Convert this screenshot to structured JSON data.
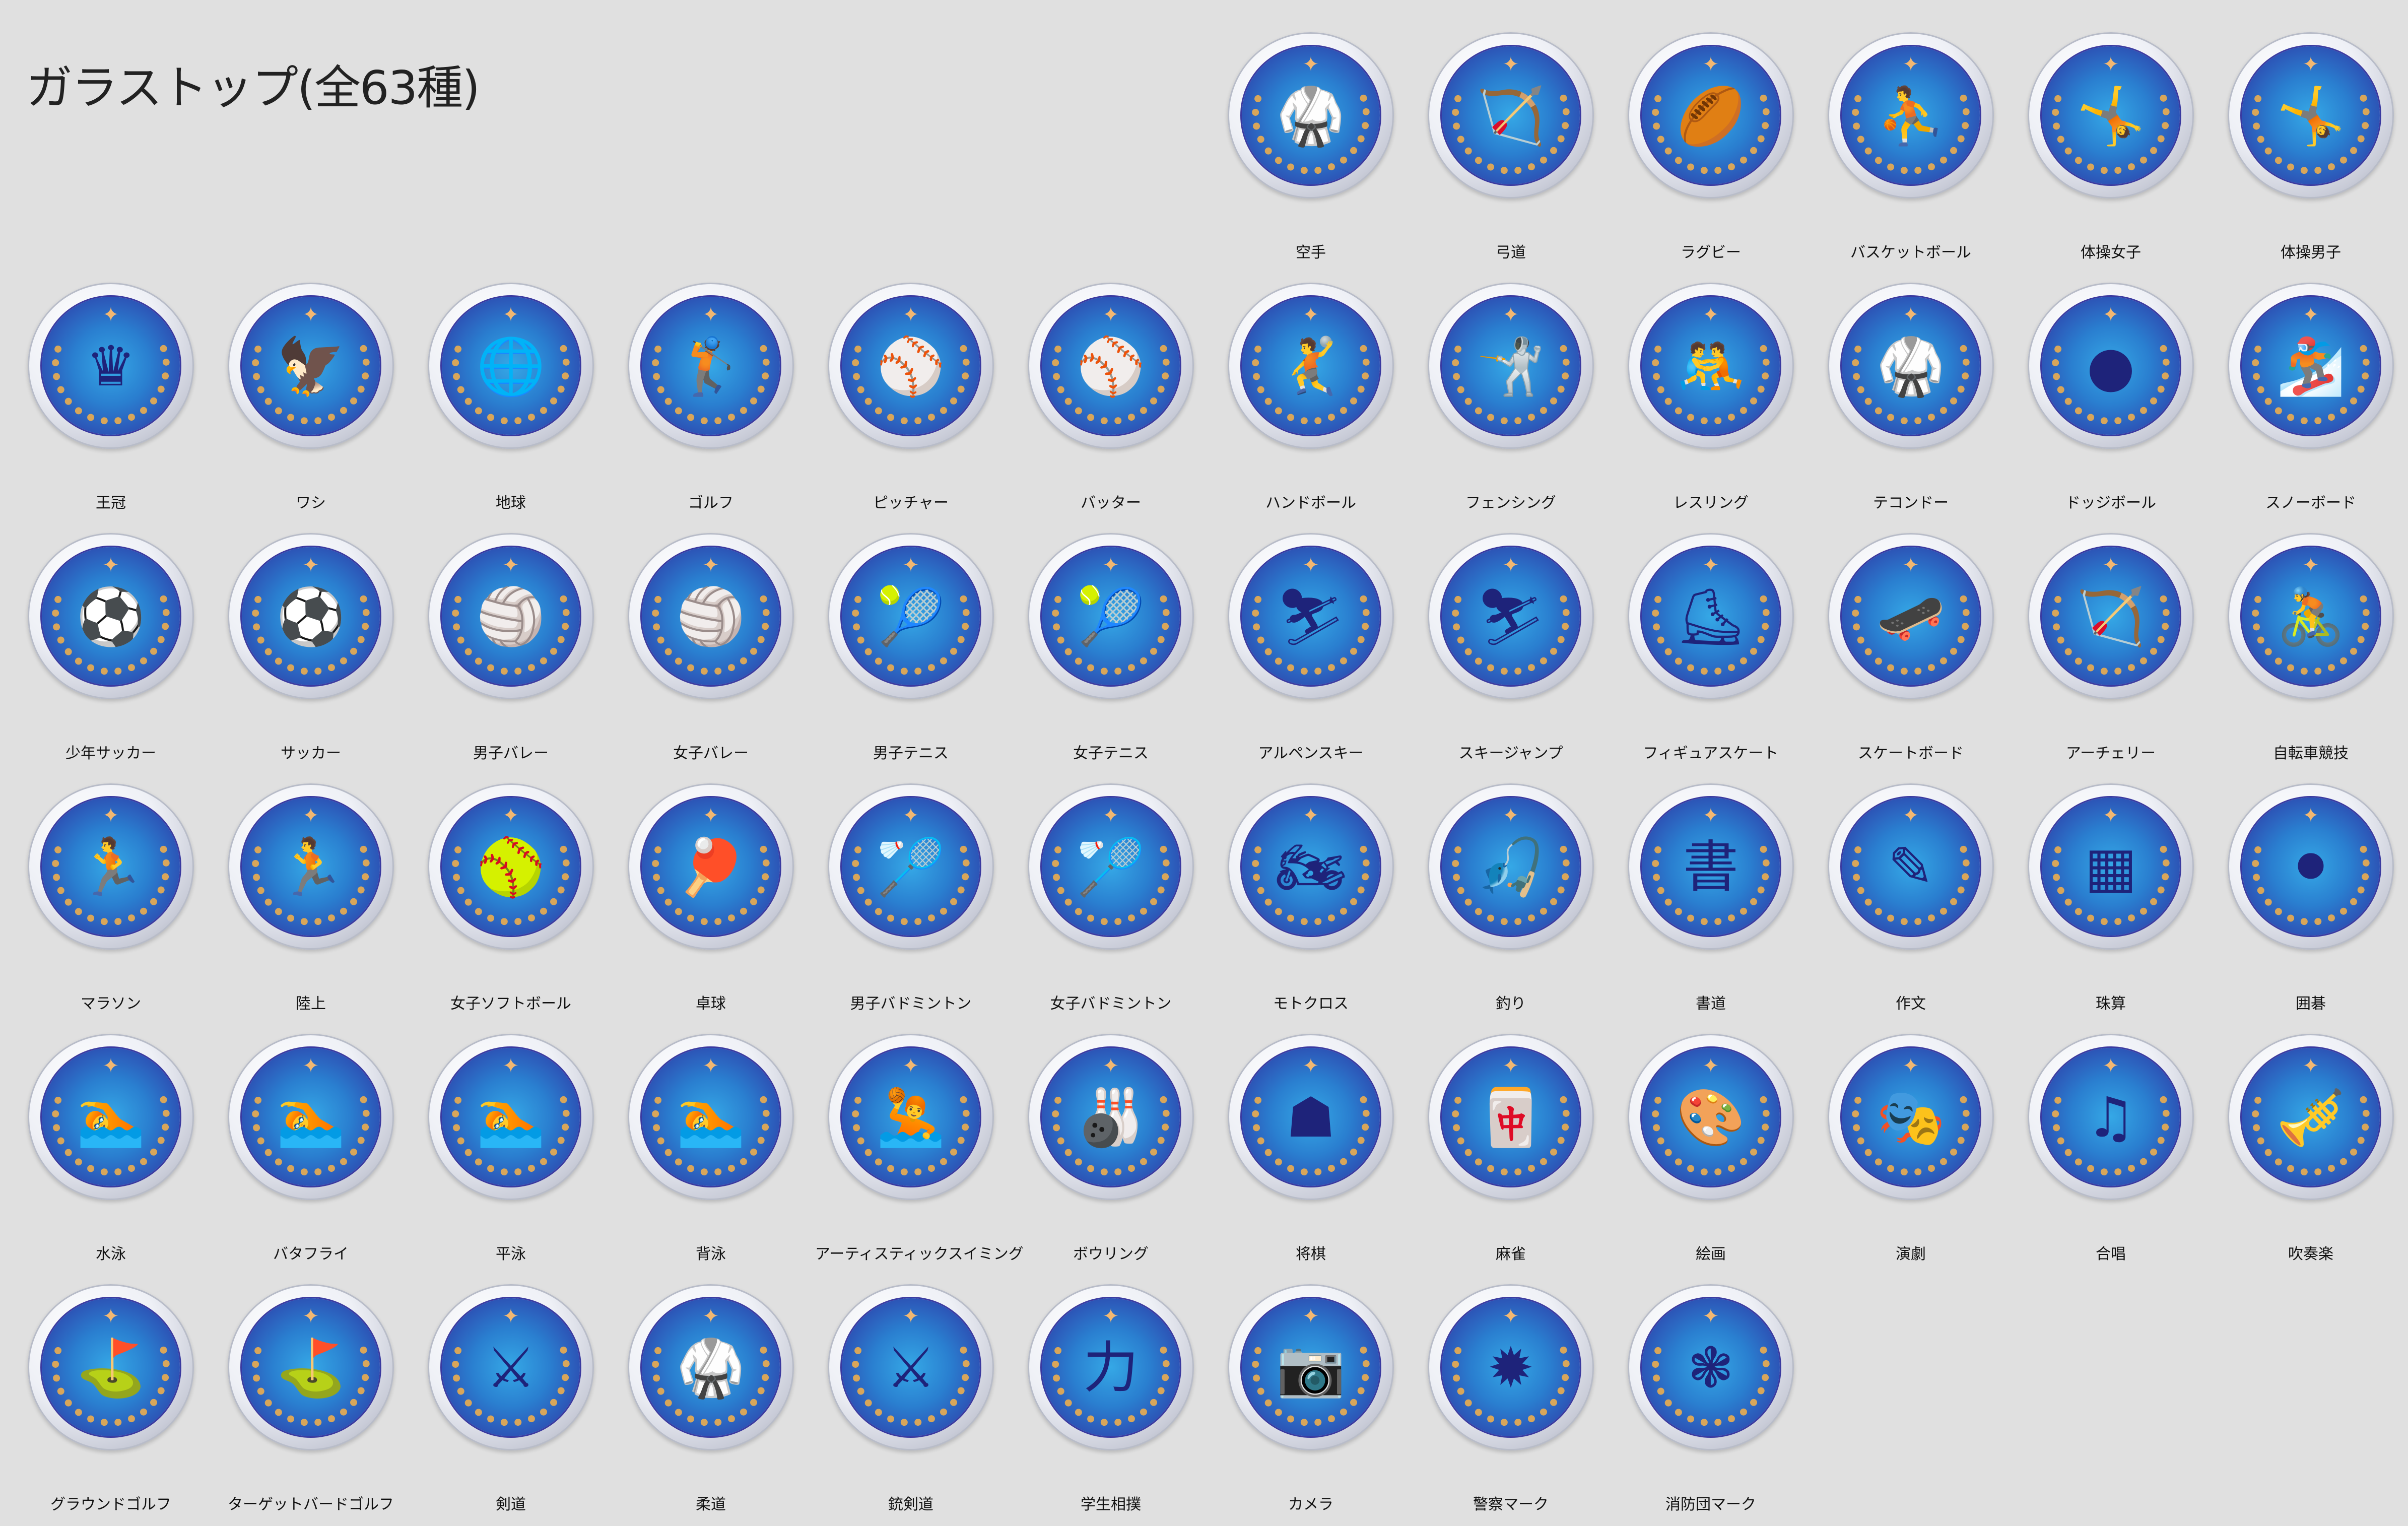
{
  "title": "ガラストップ(全63種)",
  "colors": {
    "background": "#e0e0e0",
    "disk_blue": "#2d4fb3",
    "laurel_gold": "#d8a65a",
    "figure": "#1e237a"
  },
  "items": [
    {
      "label": "空手",
      "icon": "karate-icon",
      "glyph": "🥋"
    },
    {
      "label": "弓道",
      "icon": "kyudo-icon",
      "glyph": "🏹"
    },
    {
      "label": "ラグビー",
      "icon": "rugby-icon",
      "glyph": "🏉"
    },
    {
      "label": "バスケットボール",
      "icon": "basketball-icon",
      "glyph": "⛹"
    },
    {
      "label": "体操女子",
      "icon": "gymnastics-women-icon",
      "glyph": "🤸"
    },
    {
      "label": "体操男子",
      "icon": "gymnastics-men-icon",
      "glyph": "🤸"
    },
    {
      "label": "王冠",
      "icon": "crown-icon",
      "glyph": "♛"
    },
    {
      "label": "ワシ",
      "icon": "eagle-icon",
      "glyph": "🦅"
    },
    {
      "label": "地球",
      "icon": "globe-icon",
      "glyph": "🌐"
    },
    {
      "label": "ゴルフ",
      "icon": "golf-icon",
      "glyph": "🏌"
    },
    {
      "label": "ピッチャー",
      "icon": "pitcher-icon",
      "glyph": "⚾"
    },
    {
      "label": "バッター",
      "icon": "batter-icon",
      "glyph": "⚾"
    },
    {
      "label": "ハンドボール",
      "icon": "handball-icon",
      "glyph": "🤾"
    },
    {
      "label": "フェンシング",
      "icon": "fencing-icon",
      "glyph": "🤺"
    },
    {
      "label": "レスリング",
      "icon": "wrestling-icon",
      "glyph": "🤼"
    },
    {
      "label": "テコンドー",
      "icon": "taekwondo-icon",
      "glyph": "🥋"
    },
    {
      "label": "ドッジボール",
      "icon": "dodgeball-icon",
      "glyph": "●"
    },
    {
      "label": "スノーボード",
      "icon": "snowboard-icon",
      "glyph": "🏂"
    },
    {
      "label": "少年サッカー",
      "icon": "youth-soccer-icon",
      "glyph": "⚽"
    },
    {
      "label": "サッカー",
      "icon": "soccer-icon",
      "glyph": "⚽"
    },
    {
      "label": "男子バレー",
      "icon": "volleyball-men-icon",
      "glyph": "🏐"
    },
    {
      "label": "女子バレー",
      "icon": "volleyball-women-icon",
      "glyph": "🏐"
    },
    {
      "label": "男子テニス",
      "icon": "tennis-men-icon",
      "glyph": "🎾"
    },
    {
      "label": "女子テニス",
      "icon": "tennis-women-icon",
      "glyph": "🎾"
    },
    {
      "label": "アルペンスキー",
      "icon": "alpine-ski-icon",
      "glyph": "⛷"
    },
    {
      "label": "スキージャンプ",
      "icon": "ski-jump-icon",
      "glyph": "⛷"
    },
    {
      "label": "フィギュアスケート",
      "icon": "figure-skating-icon",
      "glyph": "⛸"
    },
    {
      "label": "スケートボード",
      "icon": "skateboard-icon",
      "glyph": "🛹"
    },
    {
      "label": "アーチェリー",
      "icon": "archery-icon",
      "glyph": "🏹"
    },
    {
      "label": "自転車競技",
      "icon": "cycling-icon",
      "glyph": "🚴"
    },
    {
      "label": "マラソン",
      "icon": "marathon-icon",
      "glyph": "🏃"
    },
    {
      "label": "陸上",
      "icon": "track-icon",
      "glyph": "🏃"
    },
    {
      "label": "女子ソフトボール",
      "icon": "softball-icon",
      "glyph": "🥎"
    },
    {
      "label": "卓球",
      "icon": "table-tennis-icon",
      "glyph": "🏓"
    },
    {
      "label": "男子バドミントン",
      "icon": "badminton-men-icon",
      "glyph": "🏸"
    },
    {
      "label": "女子バドミントン",
      "icon": "badminton-women-icon",
      "glyph": "🏸"
    },
    {
      "label": "モトクロス",
      "icon": "motocross-icon",
      "glyph": "🏍"
    },
    {
      "label": "釣り",
      "icon": "fishing-icon",
      "glyph": "🎣"
    },
    {
      "label": "書道",
      "icon": "calligraphy-icon",
      "glyph": "書"
    },
    {
      "label": "作文",
      "icon": "composition-icon",
      "glyph": "✎"
    },
    {
      "label": "珠算",
      "icon": "abacus-icon",
      "glyph": "▦"
    },
    {
      "label": "囲碁",
      "icon": "go-icon",
      "glyph": "⚫"
    },
    {
      "label": "水泳",
      "icon": "swimming-icon",
      "glyph": "🏊"
    },
    {
      "label": "バタフライ",
      "icon": "butterfly-stroke-icon",
      "glyph": "🏊"
    },
    {
      "label": "平泳",
      "icon": "breaststroke-icon",
      "glyph": "🏊"
    },
    {
      "label": "背泳",
      "icon": "backstroke-icon",
      "glyph": "🏊"
    },
    {
      "label": "アーティスティックスイミング",
      "icon": "artistic-swimming-icon",
      "glyph": "🤽"
    },
    {
      "label": "ボウリング",
      "icon": "bowling-icon",
      "glyph": "🎳"
    },
    {
      "label": "将棋",
      "icon": "shogi-icon",
      "glyph": "☗"
    },
    {
      "label": "麻雀",
      "icon": "mahjong-icon",
      "glyph": "🀄"
    },
    {
      "label": "絵画",
      "icon": "painting-icon",
      "glyph": "🎨"
    },
    {
      "label": "演劇",
      "icon": "theater-icon",
      "glyph": "🎭"
    },
    {
      "label": "合唱",
      "icon": "choir-icon",
      "glyph": "♫"
    },
    {
      "label": "吹奏楽",
      "icon": "brass-band-icon",
      "glyph": "🎺"
    },
    {
      "label": "グラウンドゴルフ",
      "icon": "ground-golf-icon",
      "glyph": "⛳"
    },
    {
      "label": "ターゲットバードゴルフ",
      "icon": "target-bird-golf-icon",
      "glyph": "⛳"
    },
    {
      "label": "剣道",
      "icon": "kendo-icon",
      "glyph": "⚔"
    },
    {
      "label": "柔道",
      "icon": "judo-icon",
      "glyph": "🥋"
    },
    {
      "label": "銃剣道",
      "icon": "jukendo-icon",
      "glyph": "⚔"
    },
    {
      "label": "学生相撲",
      "icon": "sumo-icon",
      "glyph": "力"
    },
    {
      "label": "カメラ",
      "icon": "camera-icon",
      "glyph": "📷"
    },
    {
      "label": "警察マーク",
      "icon": "police-emblem-icon",
      "glyph": "✹"
    },
    {
      "label": "消防団マーク",
      "icon": "fire-brigade-emblem-icon",
      "glyph": "❃"
    }
  ]
}
